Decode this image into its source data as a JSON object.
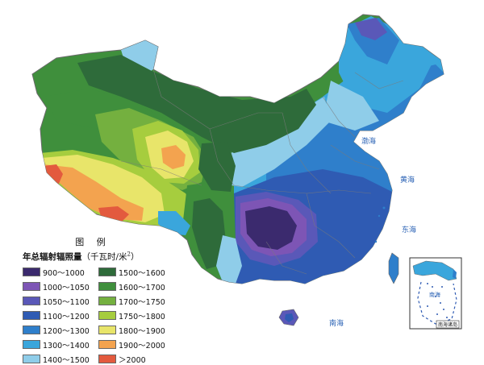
{
  "legend": {
    "title": "图 例",
    "subtitle": "年总辐射辐照量",
    "unit_prefix": "（千瓦时/米",
    "unit_sup": "2",
    "unit_suffix": "）",
    "items": [
      {
        "label": "900～1000",
        "color": "#3b2a6e"
      },
      {
        "label": "1500～1600",
        "color": "#2e6b3a"
      },
      {
        "label": "1000～1050",
        "color": "#7d55b5"
      },
      {
        "label": "1600～1700",
        "color": "#3f8f3c"
      },
      {
        "label": "1050～1100",
        "color": "#5a58b8"
      },
      {
        "label": "1700～1750",
        "color": "#74b03f"
      },
      {
        "label": "1100～1200",
        "color": "#2f5bb3"
      },
      {
        "label": "1750～1800",
        "color": "#a6cd3e"
      },
      {
        "label": "1200～1300",
        "color": "#2f7fcb"
      },
      {
        "label": "1800～1900",
        "color": "#e8e56a"
      },
      {
        "label": "1300～1400",
        "color": "#3aa6dc"
      },
      {
        "label": "1900～2000",
        "color": "#f3a34f"
      },
      {
        "label": "1400～1500",
        "color": "#8fcde9"
      },
      {
        "label": "＞2000",
        "color": "#e35a3e"
      }
    ]
  },
  "sea_labels": {
    "bohai": "渤海",
    "huanghai": "黄海",
    "donghai": "东海",
    "nanhai": "南海"
  },
  "inset": {
    "sea": "南海",
    "caption": "南海诸岛"
  }
}
